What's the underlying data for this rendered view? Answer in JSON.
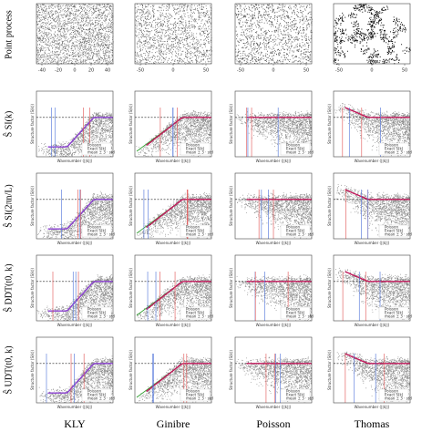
{
  "figure": {
    "columns": [
      "KLY",
      "Ginibre",
      "Poisson",
      "Thomas"
    ],
    "row_labels": [
      "Point process",
      "Ŝ SI(k)",
      "Ŝ SI(2πn/L)",
      "Ŝ DDT(t0, k)",
      "Ŝ UDT(t0, k)"
    ],
    "top_xticks": [
      [
        "-40",
        "-20",
        "0",
        "20",
        "40"
      ],
      [
        "-50",
        "0",
        "50"
      ],
      [
        "-50",
        "0",
        "50"
      ],
      [
        "-50",
        "0",
        "50"
      ]
    ],
    "x_axis_label": "Wavenumber (||k||)",
    "y_axis_label": "Structure factor (S(k))",
    "legend": [
      "Poisson",
      "Exact S(k)",
      "mean ± 3 · std"
    ]
  }
}
